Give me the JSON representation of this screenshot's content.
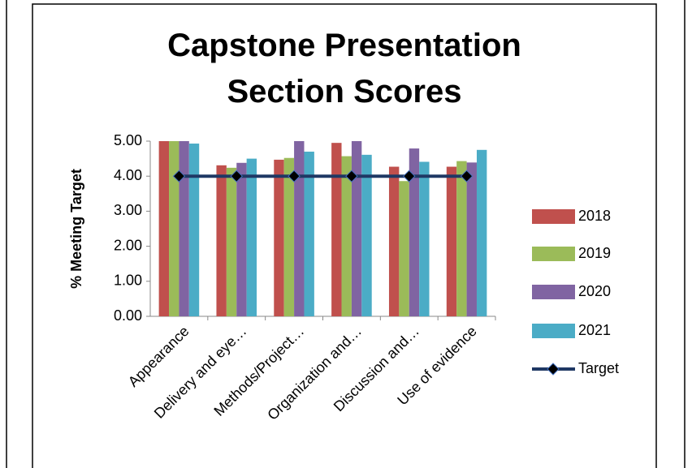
{
  "chart_data": {
    "type": "bar",
    "title": "Capstone Presentation Section Scores",
    "y_label": "% Meeting Target",
    "categories": [
      "Appearance",
      "Delivery and eye…",
      "Methods/Project…",
      "Organization and…",
      "Discussion and…",
      "Use of evidence"
    ],
    "series": [
      {
        "name": "2018",
        "color": "#c0504d",
        "values": [
          5.0,
          4.31,
          4.47,
          4.95,
          4.27,
          4.27
        ]
      },
      {
        "name": "2019",
        "color": "#9bbb59",
        "values": [
          5.0,
          4.24,
          4.52,
          4.57,
          3.86,
          4.43
        ]
      },
      {
        "name": "2020",
        "color": "#8064a2",
        "values": [
          5.0,
          4.38,
          5.0,
          5.0,
          4.79,
          4.39
        ]
      },
      {
        "name": "2021",
        "color": "#4bacc6",
        "values": [
          4.93,
          4.5,
          4.7,
          4.61,
          4.41,
          4.75
        ]
      },
      {
        "name": "Target",
        "type": "line",
        "color": "#1f3864",
        "values": [
          4,
          4,
          4,
          4,
          4,
          4
        ]
      }
    ],
    "ylim": [
      0,
      5
    ],
    "yticks": [
      {
        "value": 0,
        "label": "0.00"
      },
      {
        "value": 1,
        "label": "1.00"
      },
      {
        "value": 2,
        "label": "2.00"
      },
      {
        "value": 3,
        "label": "3.00"
      },
      {
        "value": 4,
        "label": "4.00"
      },
      {
        "value": 5,
        "label": "5.00"
      }
    ],
    "legend": "right"
  }
}
